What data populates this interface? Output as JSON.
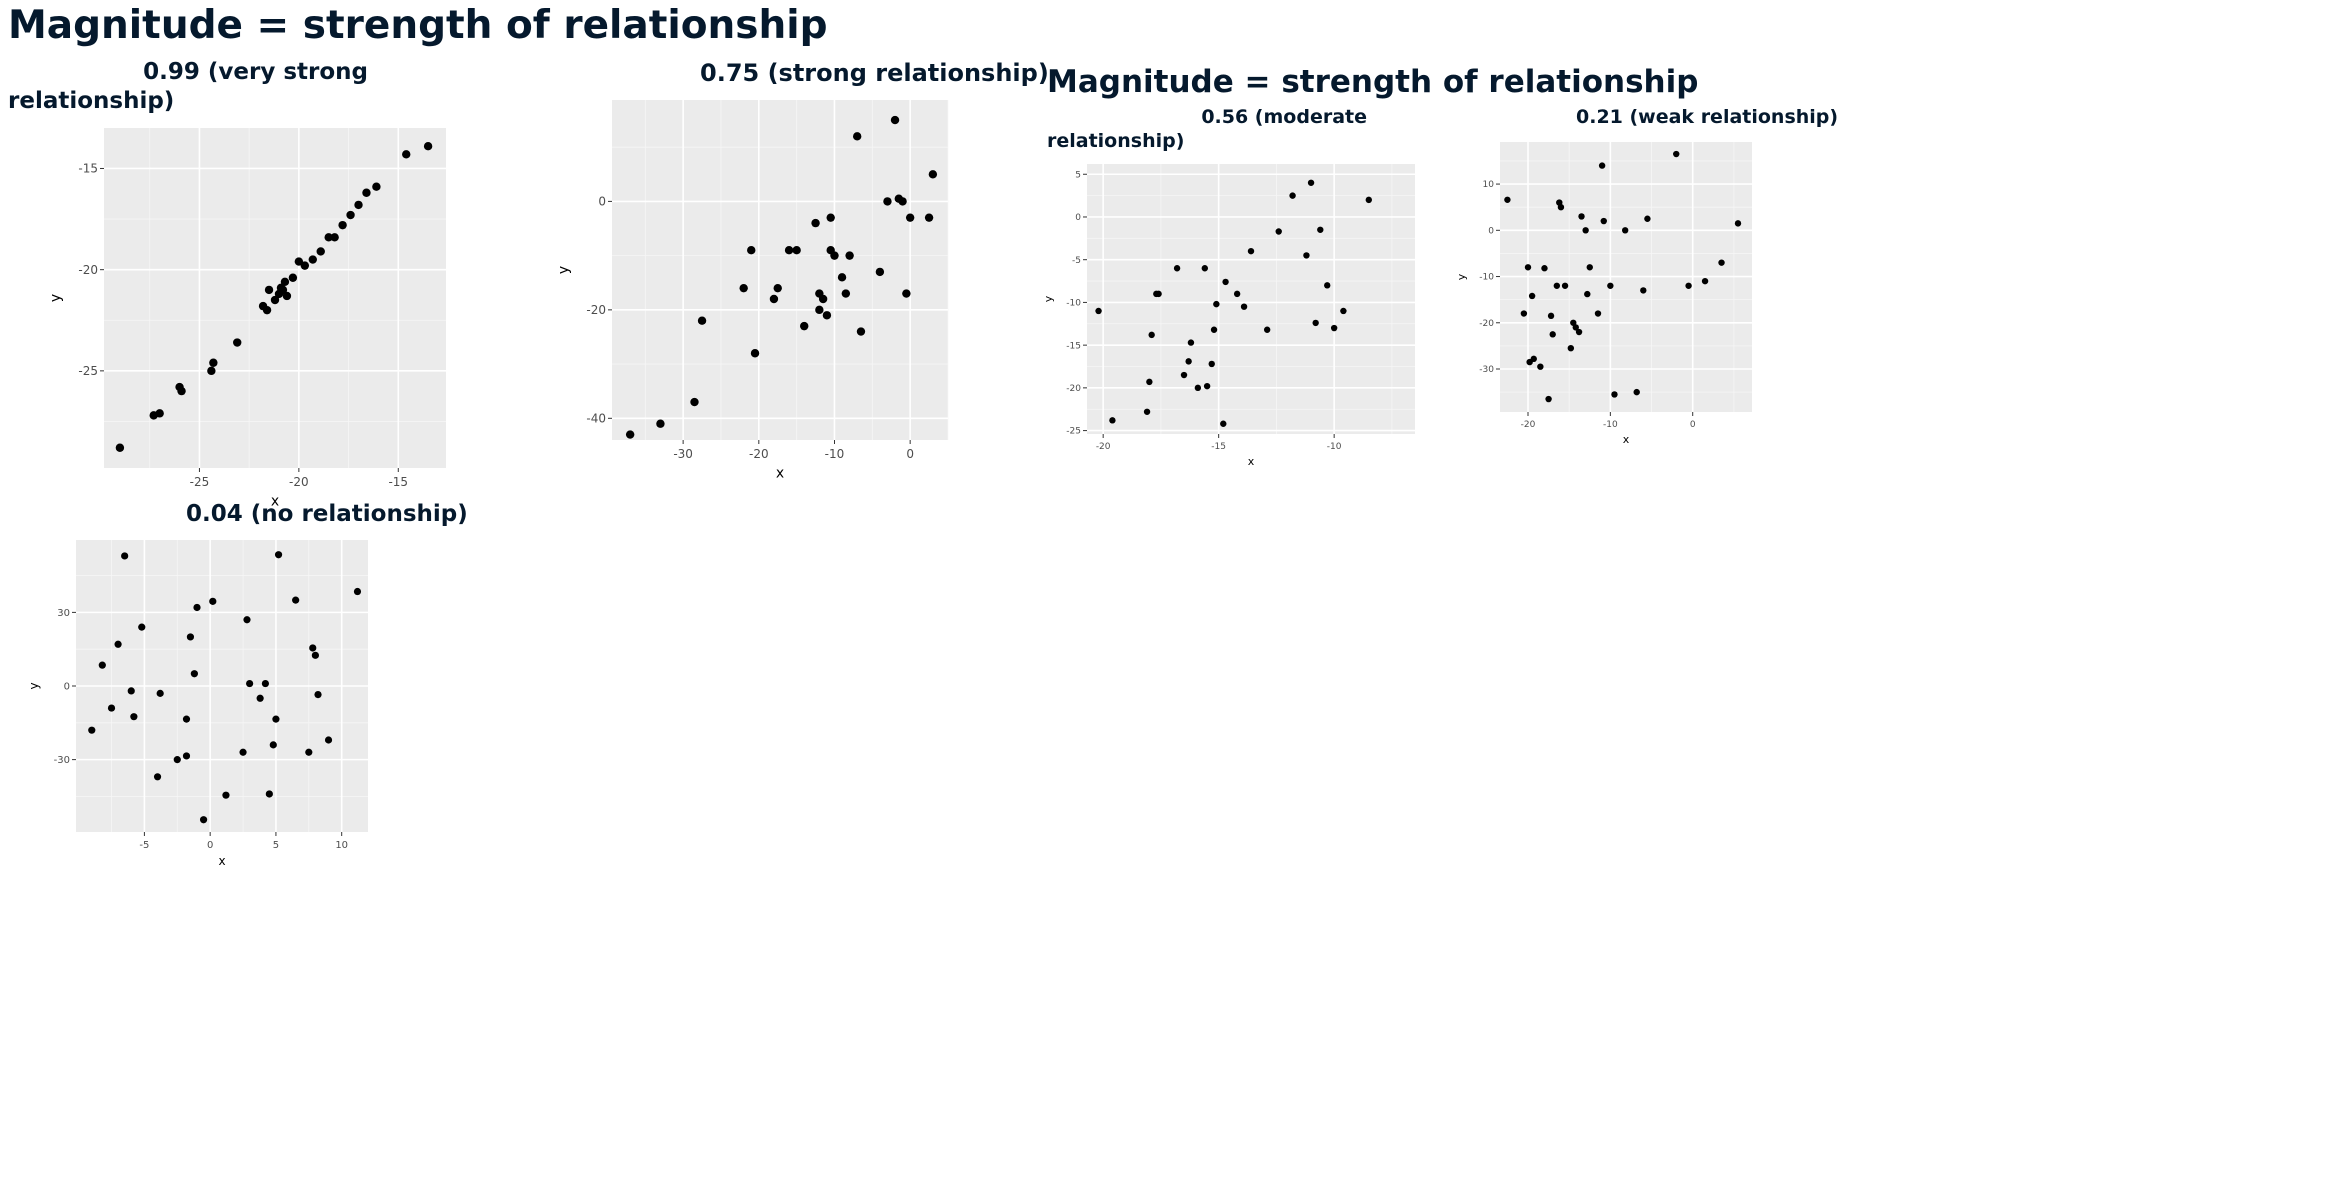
{
  "slide": {
    "title": "Magnitude = strength of relationship",
    "title_repeat": "Magnitude = strength of relationship"
  },
  "colors": {
    "text": "#05192d",
    "panel_bg": "#ebebeb",
    "grid": "#ffffff",
    "point": "#000000"
  },
  "chart_data": [
    {
      "type": "scatter",
      "title": "0.99 (very strong relationship)",
      "title_lines": [
        "0.99 (very strong",
        "relationship)"
      ],
      "xlabel": "x",
      "ylabel": "y",
      "xlim": [
        -29.8,
        -12.6
      ],
      "ylim": [
        -29.8,
        -13.0
      ],
      "xticks": [
        -25,
        -20,
        -15
      ],
      "yticks": [
        -25,
        -20,
        -15
      ],
      "grid": true,
      "x": [
        -29.0,
        -27.3,
        -27.0,
        -26.0,
        -25.9,
        -24.4,
        -24.3,
        -23.1,
        -21.8,
        -21.6,
        -21.5,
        -21.2,
        -21.0,
        -20.9,
        -20.8,
        -20.7,
        -20.6,
        -20.3,
        -20.0,
        -19.7,
        -19.3,
        -18.9,
        -18.5,
        -18.2,
        -17.8,
        -17.4,
        -17.0,
        -16.6,
        -16.1,
        -14.6,
        -13.5
      ],
      "y": [
        -28.8,
        -27.2,
        -27.1,
        -25.8,
        -26.0,
        -25.0,
        -24.6,
        -23.6,
        -21.8,
        -22.0,
        -21.0,
        -21.5,
        -21.2,
        -20.9,
        -21.0,
        -20.6,
        -21.3,
        -20.4,
        -19.6,
        -19.8,
        -19.5,
        -19.1,
        -18.4,
        -18.4,
        -17.8,
        -17.3,
        -16.8,
        -16.2,
        -15.9,
        -14.3,
        -13.9
      ]
    },
    {
      "type": "scatter",
      "title": "0.75 (strong relationship)",
      "title_lines": [
        "0.75 (strong relationship)"
      ],
      "xlabel": "x",
      "ylabel": "y",
      "xlim": [
        -39.4,
        5.0
      ],
      "ylim": [
        -44.0,
        18.7
      ],
      "xticks": [
        -30,
        -20,
        -10,
        0
      ],
      "yticks": [
        -40,
        -20,
        0
      ],
      "grid": true,
      "x": [
        -37.0,
        -33.0,
        -28.5,
        -27.5,
        -22.0,
        -21.0,
        -20.5,
        -18.0,
        -17.5,
        -16.0,
        -15.0,
        -14.0,
        -12.5,
        -12.0,
        -12.0,
        -11.5,
        -11.0,
        -10.5,
        -10.5,
        -10.0,
        -9.0,
        -8.5,
        -8.0,
        -7.0,
        -6.5,
        -4.0,
        -3.0,
        -2.0,
        -1.5,
        -1.0,
        -0.5,
        0.0,
        2.5,
        3.0
      ],
      "y": [
        -43.0,
        -41.0,
        -37.0,
        -22.0,
        -16.0,
        -9.0,
        -28.0,
        -18.0,
        -16.0,
        -9.0,
        -9.0,
        -23.0,
        -4.0,
        -17.0,
        -20.0,
        -18.0,
        -21.0,
        -3.0,
        -9.0,
        -10.0,
        -14.0,
        -17.0,
        -10.0,
        12.0,
        -24.0,
        -13.0,
        0.0,
        15.0,
        0.5,
        0.0,
        -17.0,
        -3.0,
        -3.0,
        5.0
      ]
    },
    {
      "type": "scatter",
      "title": "0.56 (moderate relationship)",
      "title_lines": [
        "0.56 (moderate",
        "relationship)"
      ],
      "xlabel": "x",
      "ylabel": "y",
      "xlim": [
        -20.7,
        -6.5
      ],
      "ylim": [
        -25.4,
        6.2
      ],
      "xticks": [
        -20,
        -15,
        -10
      ],
      "yticks": [
        -25,
        -20,
        -15,
        -10,
        -5,
        0,
        5
      ],
      "grid": true,
      "x": [
        -20.2,
        -19.6,
        -18.1,
        -18.0,
        -17.9,
        -17.7,
        -17.6,
        -16.8,
        -16.5,
        -16.3,
        -16.2,
        -15.9,
        -15.6,
        -15.5,
        -15.3,
        -15.2,
        -15.1,
        -14.8,
        -14.7,
        -14.2,
        -13.9,
        -13.6,
        -12.9,
        -12.4,
        -11.8,
        -11.2,
        -11.0,
        -10.8,
        -10.6,
        -10.3,
        -10.0,
        -9.6,
        -8.5
      ],
      "y": [
        -11.0,
        -23.8,
        -22.8,
        -19.3,
        -13.8,
        -9.0,
        -9.0,
        -6.0,
        -18.5,
        -16.9,
        -14.7,
        -20.0,
        -6.0,
        -19.8,
        -17.2,
        -13.2,
        -10.2,
        -24.2,
        -7.6,
        -9.0,
        -10.5,
        -4.0,
        -13.2,
        -1.7,
        2.5,
        -4.5,
        4.0,
        -12.4,
        -1.5,
        -8.0,
        -13.0,
        -11.0,
        2.0
      ]
    },
    {
      "type": "scatter",
      "title": "0.21 (weak relationship)",
      "title_lines": [
        "0.21 (weak relationship)"
      ],
      "xlabel": "x",
      "ylabel": "y",
      "xlim": [
        -23.4,
        7.2
      ],
      "ylim": [
        -39.3,
        19.1
      ],
      "xticks": [
        -20,
        -10,
        0
      ],
      "yticks": [
        -30,
        -20,
        -10,
        0,
        10
      ],
      "grid": true,
      "x": [
        -22.5,
        -20.5,
        -20.0,
        -19.8,
        -19.5,
        -19.3,
        -18.5,
        -18.0,
        -17.5,
        -17.2,
        -17.0,
        -16.5,
        -16.2,
        -16.0,
        -15.5,
        -14.8,
        -14.5,
        -14.2,
        -13.8,
        -13.5,
        -13.0,
        -12.8,
        -12.5,
        -11.5,
        -11.0,
        -10.8,
        -10.0,
        -9.5,
        -8.2,
        -6.8,
        -6.0,
        -5.5,
        -2.0,
        -0.5,
        1.5,
        3.5,
        5.5
      ],
      "y": [
        6.6,
        -18.0,
        -8.0,
        -28.5,
        -14.2,
        -27.8,
        -29.5,
        -8.2,
        -36.5,
        -18.5,
        -22.5,
        -12.0,
        6.0,
        5.0,
        -12.0,
        -25.5,
        -20.0,
        -21.0,
        -22.0,
        3.0,
        0.0,
        -13.8,
        -8.0,
        -18.0,
        14.0,
        2.0,
        -12.0,
        -35.5,
        0.0,
        -35.0,
        -13.0,
        2.5,
        16.5,
        -12.0,
        -11.0,
        -7.0,
        1.5
      ]
    },
    {
      "type": "scatter",
      "title": "0.04 (no relationship)",
      "title_lines": [
        "0.04 (no relationship)"
      ],
      "xlabel": "x",
      "ylabel": "y",
      "xlim": [
        -10.2,
        12.0
      ],
      "ylim": [
        -59.5,
        59.5
      ],
      "xticks": [
        -5,
        0,
        5,
        10
      ],
      "yticks": [
        -30,
        0,
        30
      ],
      "grid": true,
      "x": [
        -9.0,
        -8.2,
        -7.5,
        -7.0,
        -6.5,
        -6.0,
        -5.8,
        -5.2,
        -4.0,
        -3.8,
        -2.5,
        -1.8,
        -1.8,
        -1.5,
        -1.2,
        -1.0,
        -0.5,
        0.2,
        1.2,
        2.5,
        2.8,
        3.0,
        3.8,
        4.2,
        4.5,
        4.8,
        5.0,
        5.2,
        6.5,
        7.5,
        7.8,
        8.0,
        8.2,
        9.0,
        11.2
      ],
      "y": [
        -18.0,
        8.5,
        -9.0,
        17.0,
        53.0,
        -2.0,
        -12.5,
        24.0,
        -37.0,
        -3.0,
        -30.0,
        -28.5,
        -13.5,
        20.0,
        5.0,
        32.0,
        -54.5,
        34.5,
        -44.5,
        -27.0,
        27.0,
        1.0,
        -5.0,
        1.0,
        -44.0,
        -24.0,
        -13.5,
        53.5,
        35.0,
        -27.0,
        15.5,
        12.5,
        -3.5,
        -22.0,
        38.5
      ]
    }
  ]
}
